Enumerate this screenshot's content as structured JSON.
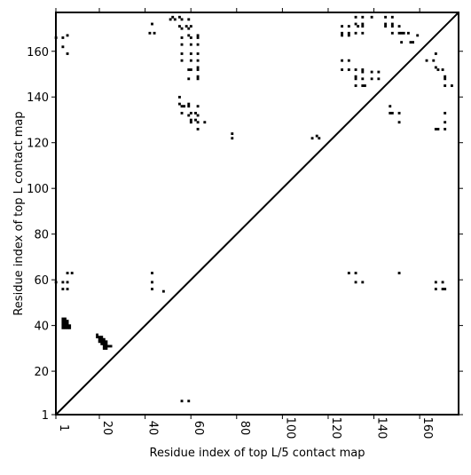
{
  "chart_data": {
    "type": "scatter",
    "title": "",
    "xlabel": "Residue index of top L/5 contact map",
    "ylabel": "Residue index of top L contact map",
    "xlim": [
      1,
      177
    ],
    "ylim": [
      1,
      177
    ],
    "x_ticks": [
      1,
      20,
      40,
      60,
      80,
      100,
      120,
      140,
      160
    ],
    "y_ticks": [
      1,
      20,
      40,
      60,
      80,
      100,
      120,
      140,
      160
    ],
    "grid": false,
    "diagonal_line": true,
    "colors": {
      "points": "#000000",
      "frame": "#000000",
      "background": "#ffffff"
    },
    "series": [
      {
        "points": [
          [
            1,
            166
          ],
          [
            4,
            162
          ],
          [
            4,
            166
          ],
          [
            6,
            167
          ],
          [
            6,
            159
          ],
          [
            42,
            168
          ],
          [
            43,
            172
          ],
          [
            44,
            168
          ],
          [
            51,
            174
          ],
          [
            52,
            175
          ],
          [
            53,
            174
          ],
          [
            55,
            175
          ],
          [
            56,
            174
          ],
          [
            59,
            174
          ],
          [
            55,
            171
          ],
          [
            56,
            170
          ],
          [
            58,
            171
          ],
          [
            59,
            170
          ],
          [
            60,
            171
          ],
          [
            56,
            166
          ],
          [
            59,
            167
          ],
          [
            60,
            166
          ],
          [
            63,
            167
          ],
          [
            63,
            166
          ],
          [
            56,
            163
          ],
          [
            60,
            163
          ],
          [
            63,
            163
          ],
          [
            56,
            159
          ],
          [
            60,
            159
          ],
          [
            63,
            159
          ],
          [
            56,
            156
          ],
          [
            60,
            156
          ],
          [
            63,
            156
          ],
          [
            59,
            152
          ],
          [
            60,
            152
          ],
          [
            63,
            153
          ],
          [
            63,
            152
          ],
          [
            59,
            148
          ],
          [
            63,
            148
          ],
          [
            63,
            149
          ],
          [
            126,
            171
          ],
          [
            126,
            168
          ],
          [
            126,
            167
          ],
          [
            129,
            171
          ],
          [
            129,
            168
          ],
          [
            129,
            167
          ],
          [
            132,
            175
          ],
          [
            132,
            172
          ],
          [
            133,
            171
          ],
          [
            132,
            168
          ],
          [
            135,
            175
          ],
          [
            135,
            172
          ],
          [
            135,
            171
          ],
          [
            135,
            168
          ],
          [
            139,
            175
          ],
          [
            145,
            175
          ],
          [
            145,
            172
          ],
          [
            145,
            171
          ],
          [
            148,
            175
          ],
          [
            148,
            172
          ],
          [
            148,
            171
          ],
          [
            148,
            168
          ],
          [
            151,
            171
          ],
          [
            151,
            168
          ],
          [
            152,
            168
          ],
          [
            153,
            168
          ],
          [
            152,
            164
          ],
          [
            155,
            168
          ],
          [
            156,
            164
          ],
          [
            157,
            164
          ],
          [
            159,
            167
          ],
          [
            126,
            156
          ],
          [
            126,
            152
          ],
          [
            129,
            156
          ],
          [
            129,
            152
          ],
          [
            132,
            152
          ],
          [
            132,
            149
          ],
          [
            132,
            148
          ],
          [
            132,
            145
          ],
          [
            135,
            152
          ],
          [
            135,
            151
          ],
          [
            135,
            148
          ],
          [
            135,
            145
          ],
          [
            136,
            145
          ],
          [
            139,
            151
          ],
          [
            139,
            148
          ],
          [
            142,
            151
          ],
          [
            142,
            148
          ],
          [
            163,
            156
          ],
          [
            166,
            156
          ],
          [
            167,
            159
          ],
          [
            167,
            153
          ],
          [
            168,
            152
          ],
          [
            170,
            152
          ],
          [
            171,
            149
          ],
          [
            171,
            148
          ],
          [
            171,
            145
          ],
          [
            174,
            145
          ],
          [
            55,
            140
          ],
          [
            55,
            137
          ],
          [
            56,
            136
          ],
          [
            57,
            136
          ],
          [
            56,
            133
          ],
          [
            59,
            137
          ],
          [
            59,
            136
          ],
          [
            60,
            133
          ],
          [
            59,
            132
          ],
          [
            60,
            130
          ],
          [
            63,
            136
          ],
          [
            62,
            133
          ],
          [
            63,
            132
          ],
          [
            62,
            130
          ],
          [
            63,
            129
          ],
          [
            63,
            126
          ],
          [
            60,
            129
          ],
          [
            66,
            129
          ],
          [
            78,
            124
          ],
          [
            78,
            122
          ],
          [
            113,
            122
          ],
          [
            115,
            123
          ],
          [
            116,
            122
          ],
          [
            147,
            136
          ],
          [
            147,
            133
          ],
          [
            148,
            133
          ],
          [
            151,
            133
          ],
          [
            151,
            129
          ],
          [
            167,
            126
          ],
          [
            168,
            126
          ],
          [
            171,
            126
          ],
          [
            171,
            129
          ],
          [
            171,
            133
          ],
          [
            1,
            59
          ],
          [
            4,
            59
          ],
          [
            6,
            59
          ],
          [
            4,
            56
          ],
          [
            6,
            56
          ],
          [
            6,
            63
          ],
          [
            8,
            63
          ],
          [
            43,
            63
          ],
          [
            43,
            59
          ],
          [
            43,
            56
          ],
          [
            48,
            55
          ],
          [
            129,
            63
          ],
          [
            132,
            63
          ],
          [
            132,
            59
          ],
          [
            135,
            59
          ],
          [
            151,
            63
          ],
          [
            167,
            59
          ],
          [
            167,
            56
          ],
          [
            170,
            59
          ],
          [
            170,
            56
          ],
          [
            171,
            56
          ],
          [
            4,
            43
          ],
          [
            5,
            43
          ],
          [
            4,
            42
          ],
          [
            5,
            42
          ],
          [
            6,
            42
          ],
          [
            4,
            41
          ],
          [
            5,
            41
          ],
          [
            6,
            41
          ],
          [
            4,
            40
          ],
          [
            5,
            40
          ],
          [
            6,
            40
          ],
          [
            7,
            40
          ],
          [
            4,
            39
          ],
          [
            5,
            39
          ],
          [
            6,
            39
          ],
          [
            7,
            39
          ],
          [
            19,
            36
          ],
          [
            19,
            35
          ],
          [
            20,
            35
          ],
          [
            21,
            35
          ],
          [
            20,
            34
          ],
          [
            21,
            34
          ],
          [
            22,
            34
          ],
          [
            20,
            33
          ],
          [
            21,
            33
          ],
          [
            22,
            33
          ],
          [
            23,
            33
          ],
          [
            21,
            32
          ],
          [
            22,
            32
          ],
          [
            23,
            32
          ],
          [
            22,
            31
          ],
          [
            23,
            31
          ],
          [
            24,
            31
          ],
          [
            25,
            31
          ],
          [
            22,
            30
          ],
          [
            23,
            30
          ],
          [
            56,
            7
          ],
          [
            59,
            7
          ]
        ]
      }
    ]
  }
}
